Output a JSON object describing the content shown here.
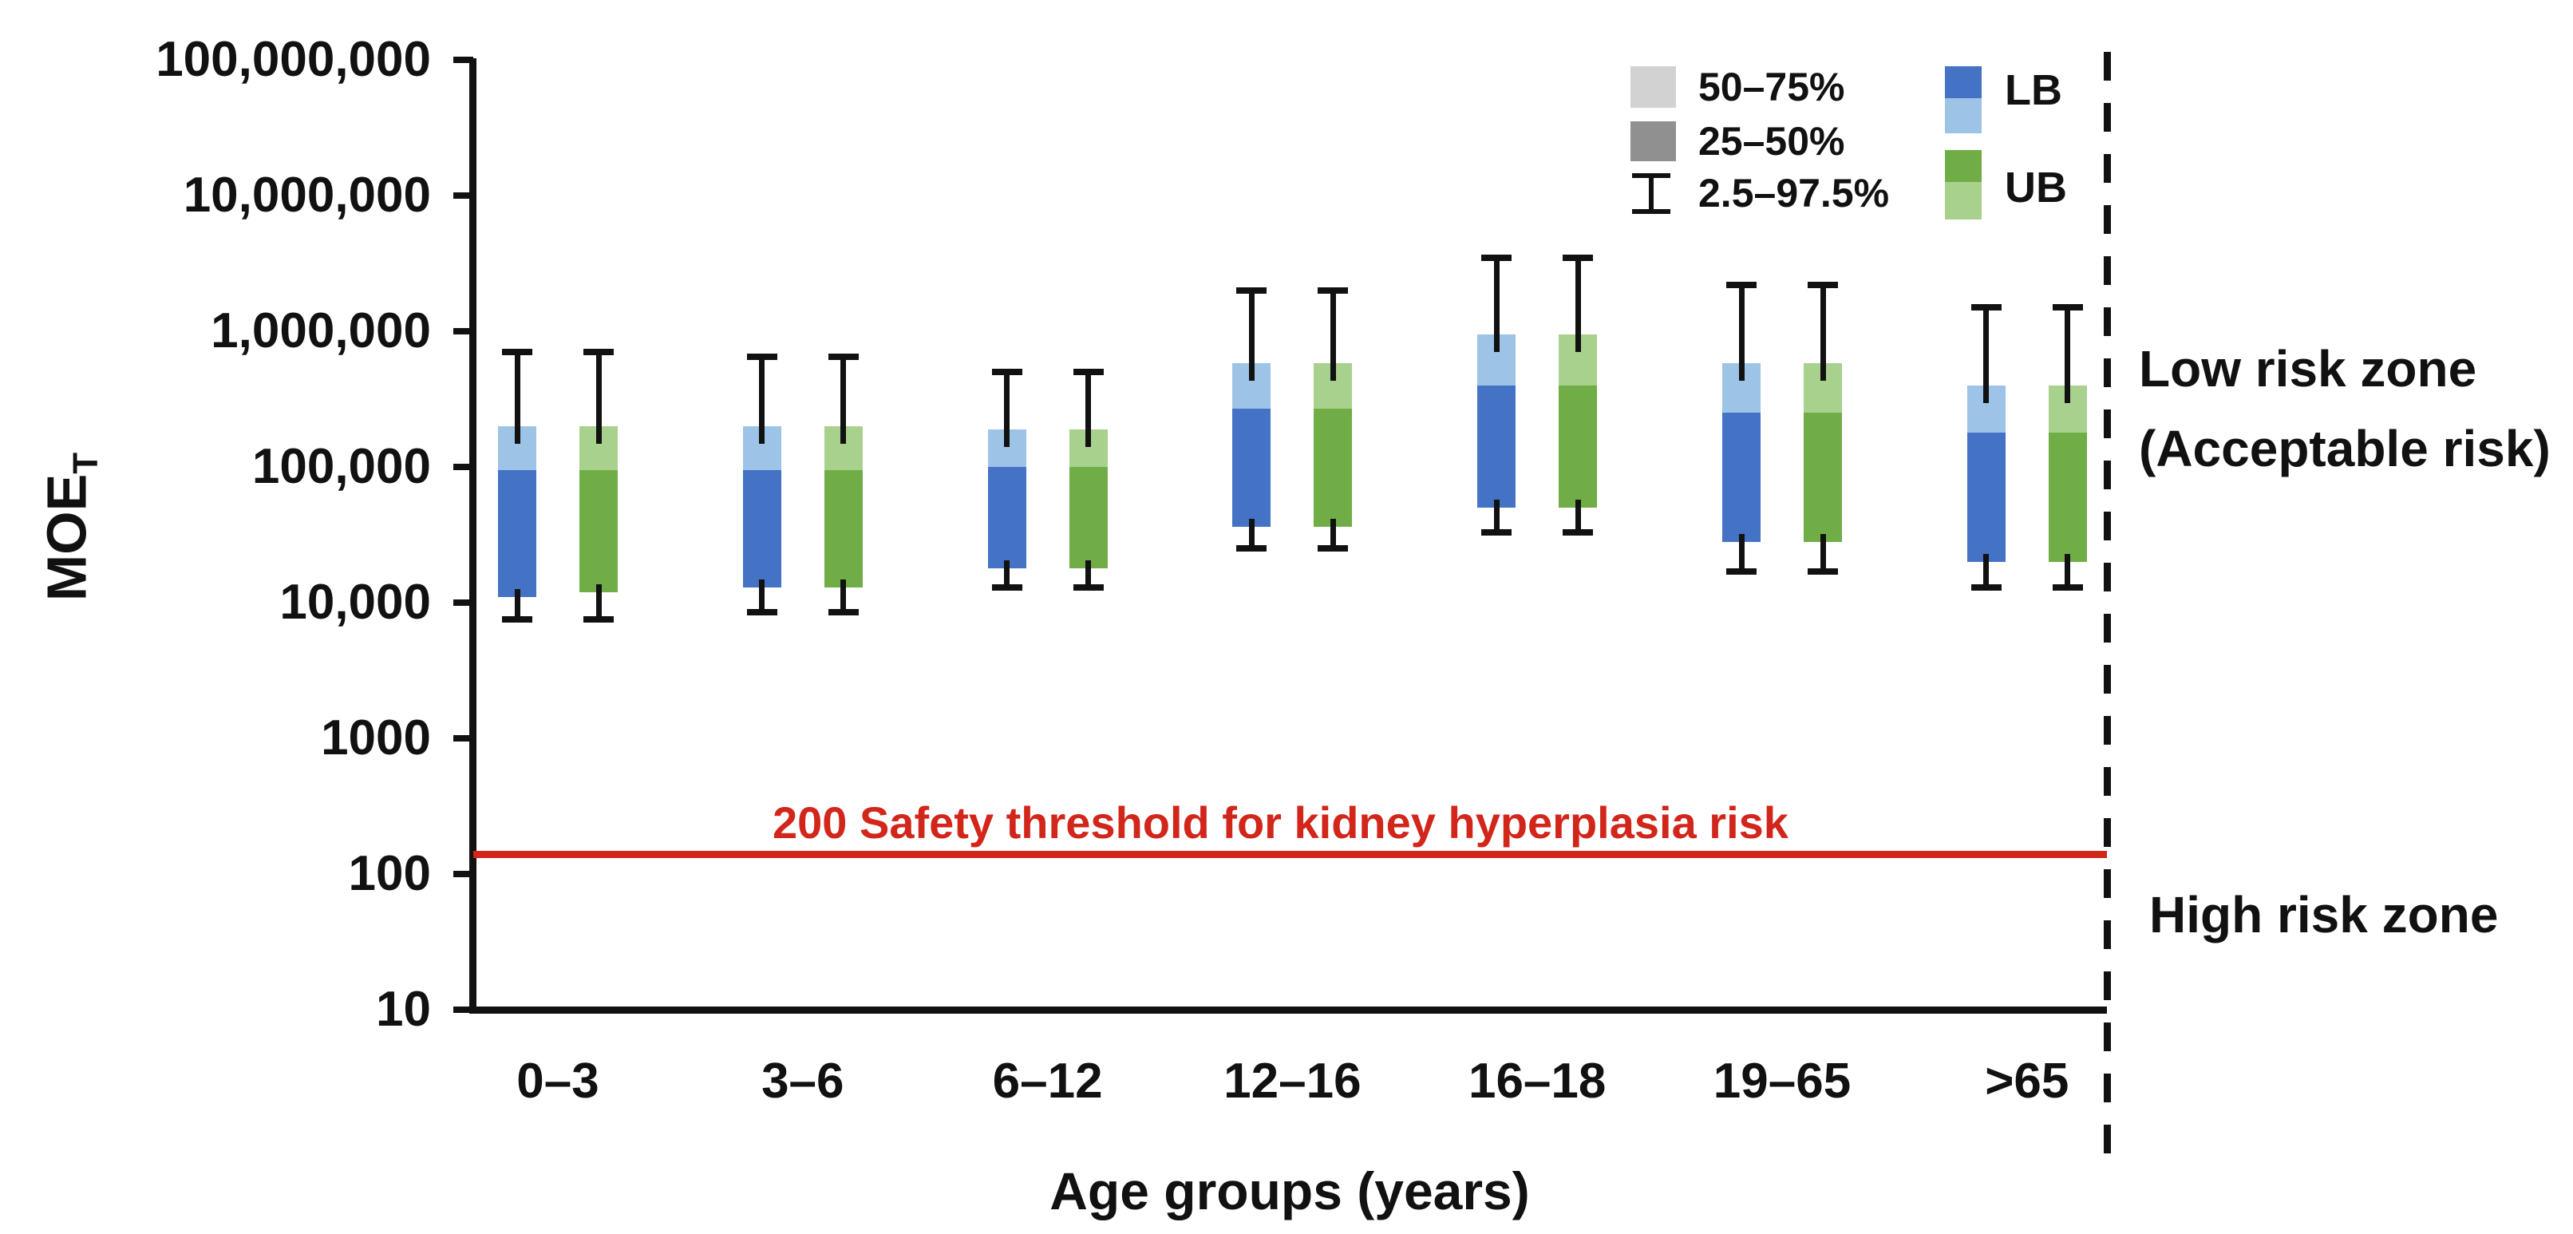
{
  "chart_data": {
    "type": "box",
    "title": "",
    "xlabel": "Age groups (years)",
    "ylabel": {
      "base": "MOE",
      "sub": "T"
    },
    "y_axis": {
      "scale": "log",
      "min": 10,
      "max": 100000000,
      "tick_values": [
        10,
        100,
        1000,
        10000,
        100000,
        1000000,
        10000000,
        100000000
      ],
      "tick_labels": [
        "10",
        "100",
        "1000",
        "10,000",
        "100,000",
        "1,000,000",
        "10,000,000",
        "100,000,000"
      ],
      "grid": false
    },
    "categories": [
      "0–3",
      "3–6",
      "6–12",
      "12–16",
      "16–18",
      "19–65",
      ">65"
    ],
    "box_stats_order": [
      "p2.5",
      "p25",
      "p50",
      "p75",
      "p97.5"
    ],
    "series": [
      {
        "name": "LB",
        "color_25_50": "#4472C4",
        "color_50_75": "#9DC3E6",
        "boxes": [
          [
            7500,
            11000,
            95000,
            200000,
            700000
          ],
          [
            8500,
            13000,
            95000,
            200000,
            650000
          ],
          [
            13000,
            18000,
            100000,
            190000,
            500000
          ],
          [
            25000,
            36000,
            270000,
            580000,
            2000000
          ],
          [
            33000,
            50000,
            400000,
            950000,
            3500000
          ],
          [
            17000,
            28000,
            250000,
            580000,
            2200000
          ],
          [
            13000,
            20000,
            180000,
            400000,
            1500000
          ]
        ]
      },
      {
        "name": "UB",
        "color_25_50": "#70AD47",
        "color_50_75": "#A9D18E",
        "boxes": [
          [
            7500,
            12000,
            95000,
            200000,
            700000
          ],
          [
            8500,
            13000,
            95000,
            200000,
            650000
          ],
          [
            13000,
            18000,
            100000,
            190000,
            500000
          ],
          [
            25000,
            36000,
            270000,
            580000,
            2000000
          ],
          [
            33000,
            50000,
            400000,
            950000,
            3500000
          ],
          [
            17000,
            28000,
            250000,
            580000,
            2200000
          ],
          [
            13000,
            20000,
            180000,
            400000,
            1500000
          ]
        ]
      }
    ],
    "legend": {
      "percentile_items": [
        {
          "label": "50–75%",
          "swatch_color": "#D2D2D2",
          "swatch_type": "square"
        },
        {
          "label": "25–50%",
          "swatch_color": "#909090",
          "swatch_type": "square"
        },
        {
          "label": "2.5–97.5%",
          "swatch_color": "#111111",
          "swatch_type": "whisker-icon"
        }
      ],
      "series_items": [
        {
          "label": "LB",
          "top_color": "#4472C4",
          "bottom_color": "#9DC3E6"
        },
        {
          "label": "UB",
          "top_color": "#70AD47",
          "bottom_color": "#A9D18E"
        }
      ],
      "position": "top-right"
    },
    "threshold": {
      "value": 200,
      "line_value": 140,
      "label": "200 Safety threshold for kidney hyperplasia risk",
      "color": "#D2261B"
    },
    "annotations": {
      "low_risk_line1": "Low risk zone",
      "low_risk_line2": "(Acceptable risk)",
      "high_risk": "High risk zone"
    },
    "axis_color": "#111111"
  }
}
